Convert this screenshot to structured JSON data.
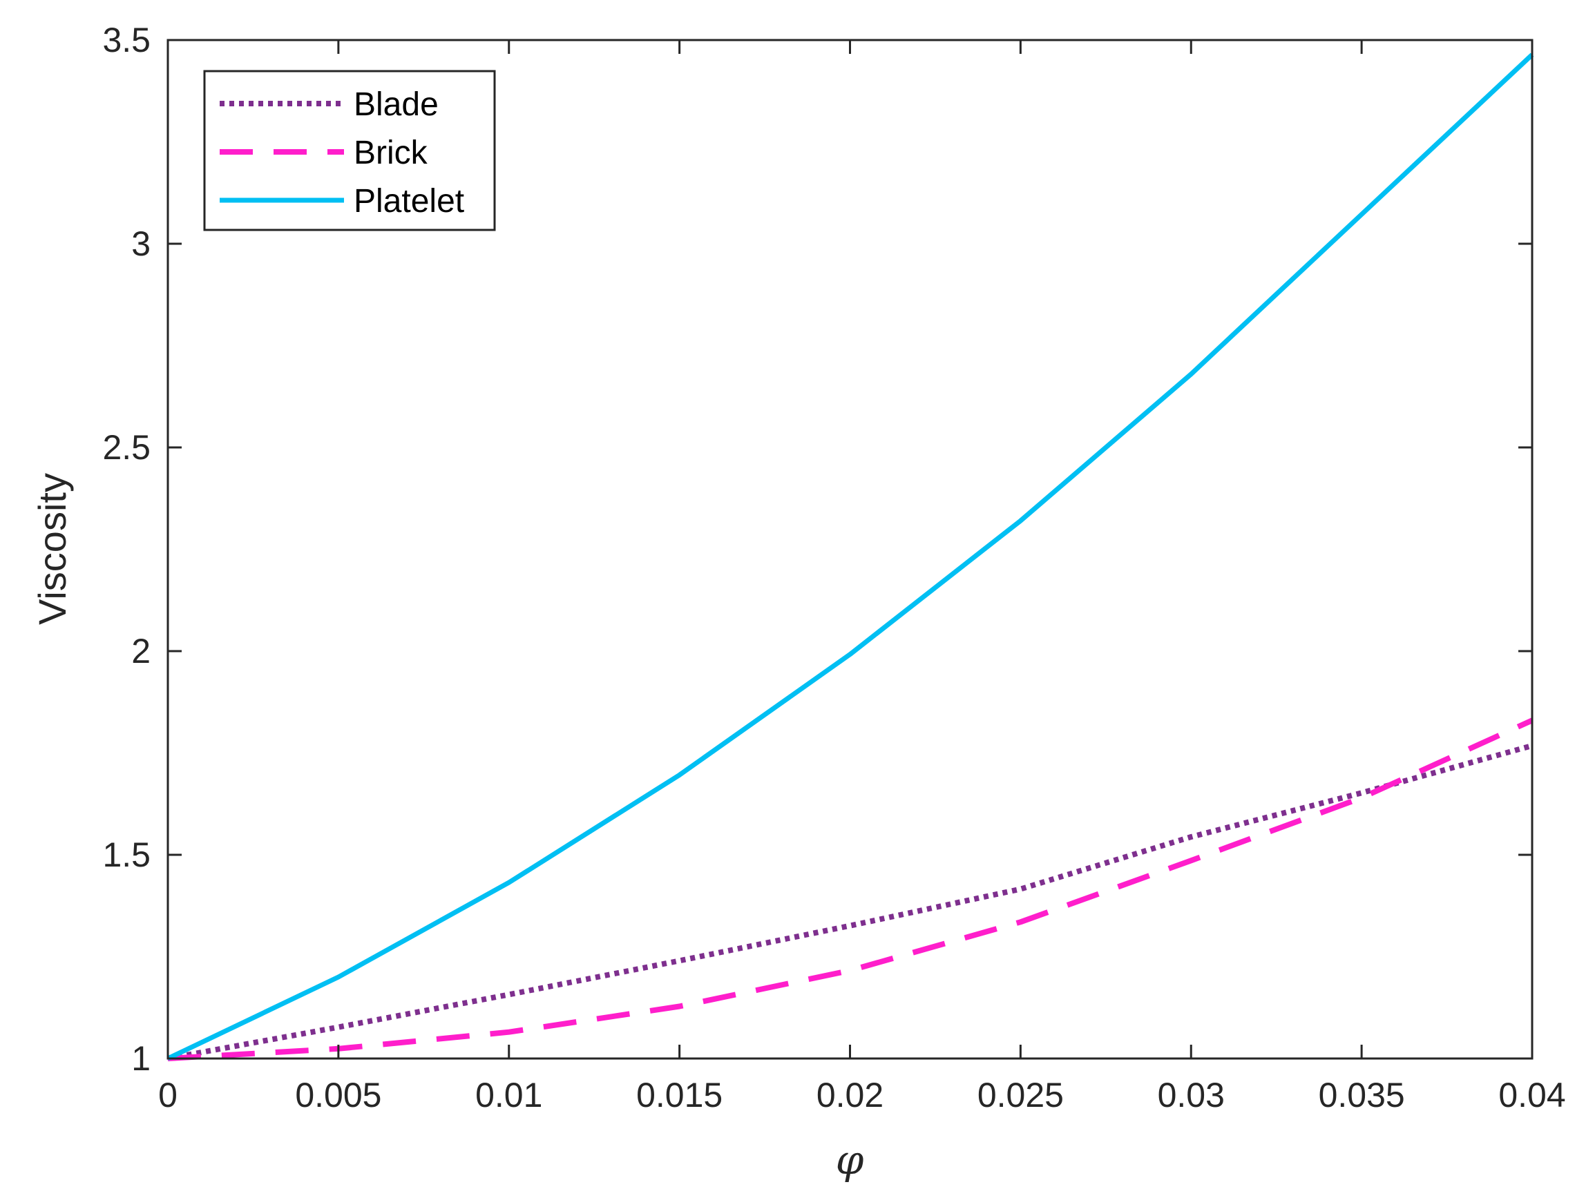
{
  "chart_data": {
    "type": "line",
    "title": "",
    "xlabel": "φ",
    "ylabel": "Viscosity",
    "xlim": [
      0,
      0.04
    ],
    "ylim": [
      1,
      3.5
    ],
    "xticks": [
      0,
      0.005,
      0.01,
      0.015,
      0.02,
      0.025,
      0.03,
      0.035,
      0.04
    ],
    "xtick_labels": [
      "0",
      "0.005",
      "0.01",
      "0.015",
      "0.02",
      "0.025",
      "0.03",
      "0.035",
      "0.04"
    ],
    "yticks": [
      1,
      1.5,
      2,
      2.5,
      3,
      3.5
    ],
    "ytick_labels": [
      "1",
      "1.5",
      "2",
      "2.5",
      "3",
      "3.5"
    ],
    "grid": false,
    "legend_position": "top-left",
    "x": [
      0,
      0.005,
      0.01,
      0.015,
      0.02,
      0.025,
      0.03,
      0.035,
      0.04
    ],
    "series": [
      {
        "name": "Blade",
        "style": "dotted",
        "color": "#7e2f8e",
        "values": [
          1.0,
          1.077,
          1.157,
          1.24,
          1.326,
          1.416,
          1.544,
          1.652,
          1.768
        ]
      },
      {
        "name": "Brick",
        "style": "dashed",
        "color": "#ff1ecb",
        "values": [
          1.0,
          1.024,
          1.065,
          1.128,
          1.216,
          1.335,
          1.486,
          1.64,
          1.83
        ]
      },
      {
        "name": "Platelet",
        "style": "solid",
        "color": "#00bff3",
        "values": [
          1.0,
          1.2,
          1.432,
          1.696,
          1.992,
          2.32,
          2.68,
          3.072,
          3.464
        ]
      }
    ]
  }
}
